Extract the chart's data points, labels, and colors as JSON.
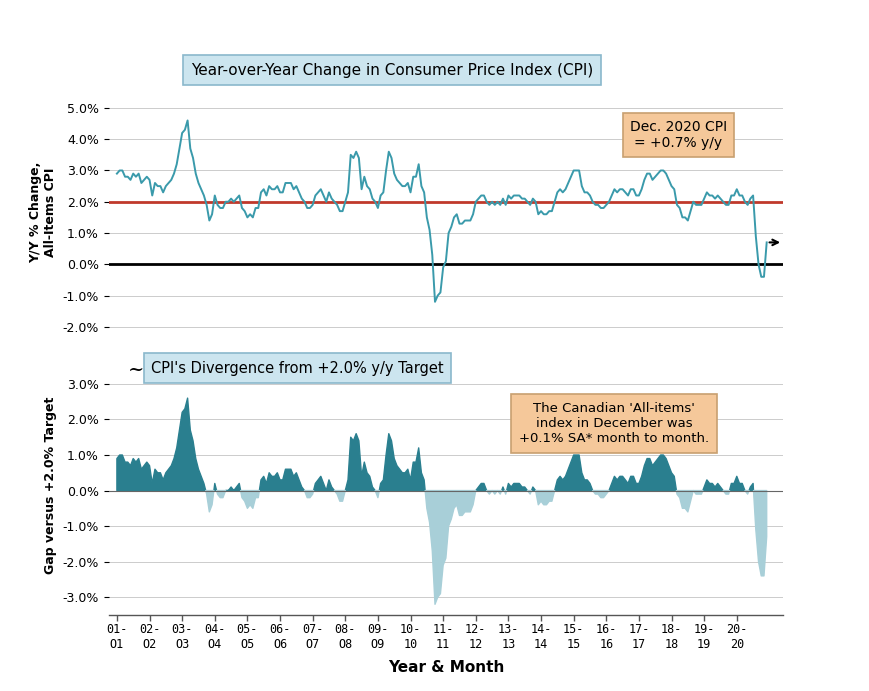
{
  "title_top": "Year-over-Year Change in Consumer Price Index (CPI)",
  "title_bottom": "CPI's Divergence from +2.0% y/y Target",
  "xlabel": "Year & Month",
  "ylabel_top": "Y/Y % Change,\nAll-Items CPI",
  "ylabel_bottom": "Gap versus +2.0% Target",
  "annotation_top": "Dec. 2020 CPI\n= +0.7% y/y",
  "annotation_bottom": "The Canadian 'All-items'\nindex in December was\n+0.1% SA* month to month.",
  "target_line": 2.0,
  "x_ticks": [
    "01-\n  \nO1",
    "02-\n  \nO2",
    "03-\n  \nO3",
    "04-\n  \nO4",
    "05-\n  \nO5",
    "06-\n  \nO6",
    "07-\n  \nO7",
    "08-\n  \nO8",
    "09-\n  \nO9",
    "10-\n  \n10",
    "11-\n  \n11",
    "12-\n  \n12",
    "13-\n  \n13",
    "14-\n  \n14",
    "15-\n  \n15",
    "16-\n  \n16",
    "17-\n  \n17",
    "18-\n  \n18",
    "19-\n  \n19",
    "20-\n  \n20"
  ],
  "x_tick_top": [
    "01-",
    "02-",
    "03-",
    "04-",
    "05-",
    "06-",
    "07-",
    "08-",
    "09-",
    "10-",
    "11-",
    "12-",
    "13-",
    "14-",
    "15-",
    "16-",
    "17-",
    "18-",
    "19-",
    "20-"
  ],
  "x_tick_bot": [
    "O1",
    "O2",
    "O3",
    "O4",
    "O5",
    "O6",
    "O7",
    "O8",
    "O9",
    "10",
    "11",
    "12",
    "13",
    "14",
    "15",
    "16",
    "17",
    "18",
    "19",
    "20"
  ],
  "line_color": "#3a9aab",
  "fill_above_color": "#2a7f8f",
  "fill_below_color": "#a8cfd8",
  "target_line_color": "#c0392b",
  "zero_line_color": "#000000",
  "background_color": "#ffffff",
  "title_box_color": "#cce5ef",
  "annotation_box_color": "#f5c89a",
  "grid_color": "#cccccc",
  "cpi_yoy": [
    2.9,
    3.0,
    3.0,
    2.8,
    2.8,
    2.7,
    2.9,
    2.8,
    2.9,
    2.6,
    2.7,
    2.8,
    2.7,
    2.2,
    2.6,
    2.5,
    2.5,
    2.3,
    2.5,
    2.6,
    2.7,
    2.9,
    3.2,
    3.7,
    4.2,
    4.3,
    4.6,
    3.7,
    3.4,
    2.9,
    2.6,
    2.4,
    2.2,
    1.9,
    1.4,
    1.6,
    2.2,
    1.9,
    1.8,
    1.8,
    2.0,
    2.0,
    2.1,
    2.0,
    2.1,
    2.2,
    1.8,
    1.7,
    1.5,
    1.6,
    1.5,
    1.8,
    1.8,
    2.3,
    2.4,
    2.2,
    2.5,
    2.4,
    2.4,
    2.5,
    2.3,
    2.3,
    2.6,
    2.6,
    2.6,
    2.4,
    2.5,
    2.3,
    2.1,
    2.0,
    1.8,
    1.8,
    1.9,
    2.2,
    2.3,
    2.4,
    2.2,
    2.0,
    2.3,
    2.1,
    2.0,
    1.9,
    1.7,
    1.7,
    2.0,
    2.3,
    3.5,
    3.4,
    3.6,
    3.4,
    2.4,
    2.8,
    2.5,
    2.4,
    2.1,
    2.0,
    1.8,
    2.2,
    2.3,
    3.0,
    3.6,
    3.4,
    2.9,
    2.7,
    2.6,
    2.5,
    2.5,
    2.6,
    2.3,
    2.8,
    2.8,
    3.2,
    2.5,
    2.3,
    1.5,
    1.1,
    0.3,
    -1.2,
    -1.0,
    -0.9,
    -0.1,
    0.1,
    1.0,
    1.2,
    1.5,
    1.6,
    1.3,
    1.3,
    1.4,
    1.4,
    1.4,
    1.6,
    2.0,
    2.1,
    2.2,
    2.2,
    2.0,
    1.9,
    2.0,
    1.9,
    2.0,
    1.9,
    2.1,
    1.9,
    2.2,
    2.1,
    2.2,
    2.2,
    2.2,
    2.1,
    2.1,
    2.0,
    1.9,
    2.1,
    2.0,
    1.6,
    1.7,
    1.6,
    1.6,
    1.7,
    1.7,
    2.0,
    2.3,
    2.4,
    2.3,
    2.4,
    2.6,
    2.8,
    3.0,
    3.0,
    3.0,
    2.5,
    2.3,
    2.3,
    2.2,
    2.0,
    1.9,
    1.9,
    1.8,
    1.8,
    1.9,
    2.0,
    2.2,
    2.4,
    2.3,
    2.4,
    2.4,
    2.3,
    2.2,
    2.4,
    2.4,
    2.2,
    2.2,
    2.4,
    2.7,
    2.9,
    2.9,
    2.7,
    2.8,
    2.9,
    3.0,
    3.0,
    2.9,
    2.7,
    2.5,
    2.4,
    1.9,
    1.8,
    1.5,
    1.5,
    1.4,
    1.7,
    2.0,
    1.9,
    1.9,
    1.9,
    2.1,
    2.3,
    2.2,
    2.2,
    2.1,
    2.2,
    2.1,
    2.0,
    1.9,
    1.9,
    2.2,
    2.2,
    2.4,
    2.2,
    2.2,
    2.0,
    1.9,
    2.1,
    2.2,
    0.9,
    0.0,
    -0.4,
    -0.4,
    0.7
  ],
  "figsize": [
    8.7,
    6.91
  ],
  "dpi": 100
}
